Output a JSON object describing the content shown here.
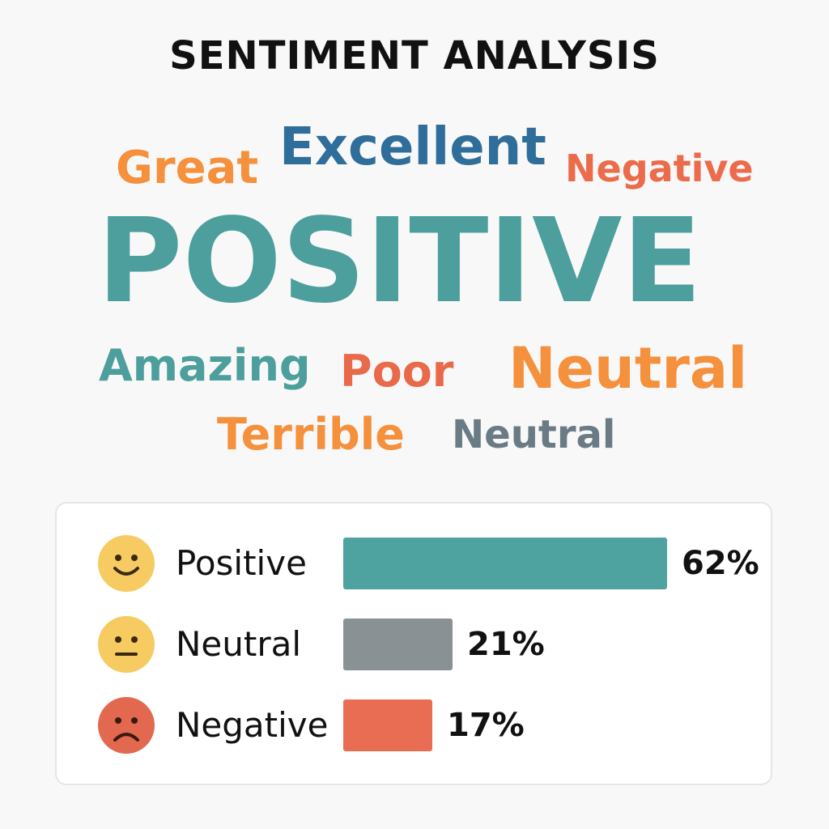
{
  "title": "SENTIMENT ANALYSIS",
  "word_cloud": [
    {
      "text": "Great",
      "color": "#F5903C"
    },
    {
      "text": "Excellent",
      "color": "#2F6E9A"
    },
    {
      "text": "Negative",
      "color": "#EC6B4B"
    },
    {
      "text": "POSITIVE",
      "color": "#4C9F9C"
    },
    {
      "text": "Amazing",
      "color": "#4C9F9C"
    },
    {
      "text": "Poor",
      "color": "#E86A4A"
    },
    {
      "text": "Neutral",
      "color": "#F5903C"
    },
    {
      "text": "Terrible",
      "color": "#F5903C"
    },
    {
      "text": "Neutral",
      "color": "#6A7B85"
    }
  ],
  "chart_data": {
    "type": "bar",
    "orientation": "horizontal",
    "categories": [
      "Positive",
      "Neutral",
      "Negative"
    ],
    "values": [
      62,
      21,
      17
    ],
    "value_labels": [
      "62%",
      "21%",
      "17%"
    ],
    "unit": "%",
    "icons": [
      "smiling-face-icon",
      "neutral-face-icon",
      "frowning-face-icon"
    ],
    "colors": [
      "#4EA3A0",
      "#8A9194",
      "#E86D52"
    ],
    "icon_colors": [
      "#F6CB62",
      "#F6CB62",
      "#E2694F"
    ],
    "xlim": [
      0,
      100
    ],
    "title": "",
    "xlabel": "",
    "ylabel": "",
    "grid": false,
    "legend": "none"
  }
}
